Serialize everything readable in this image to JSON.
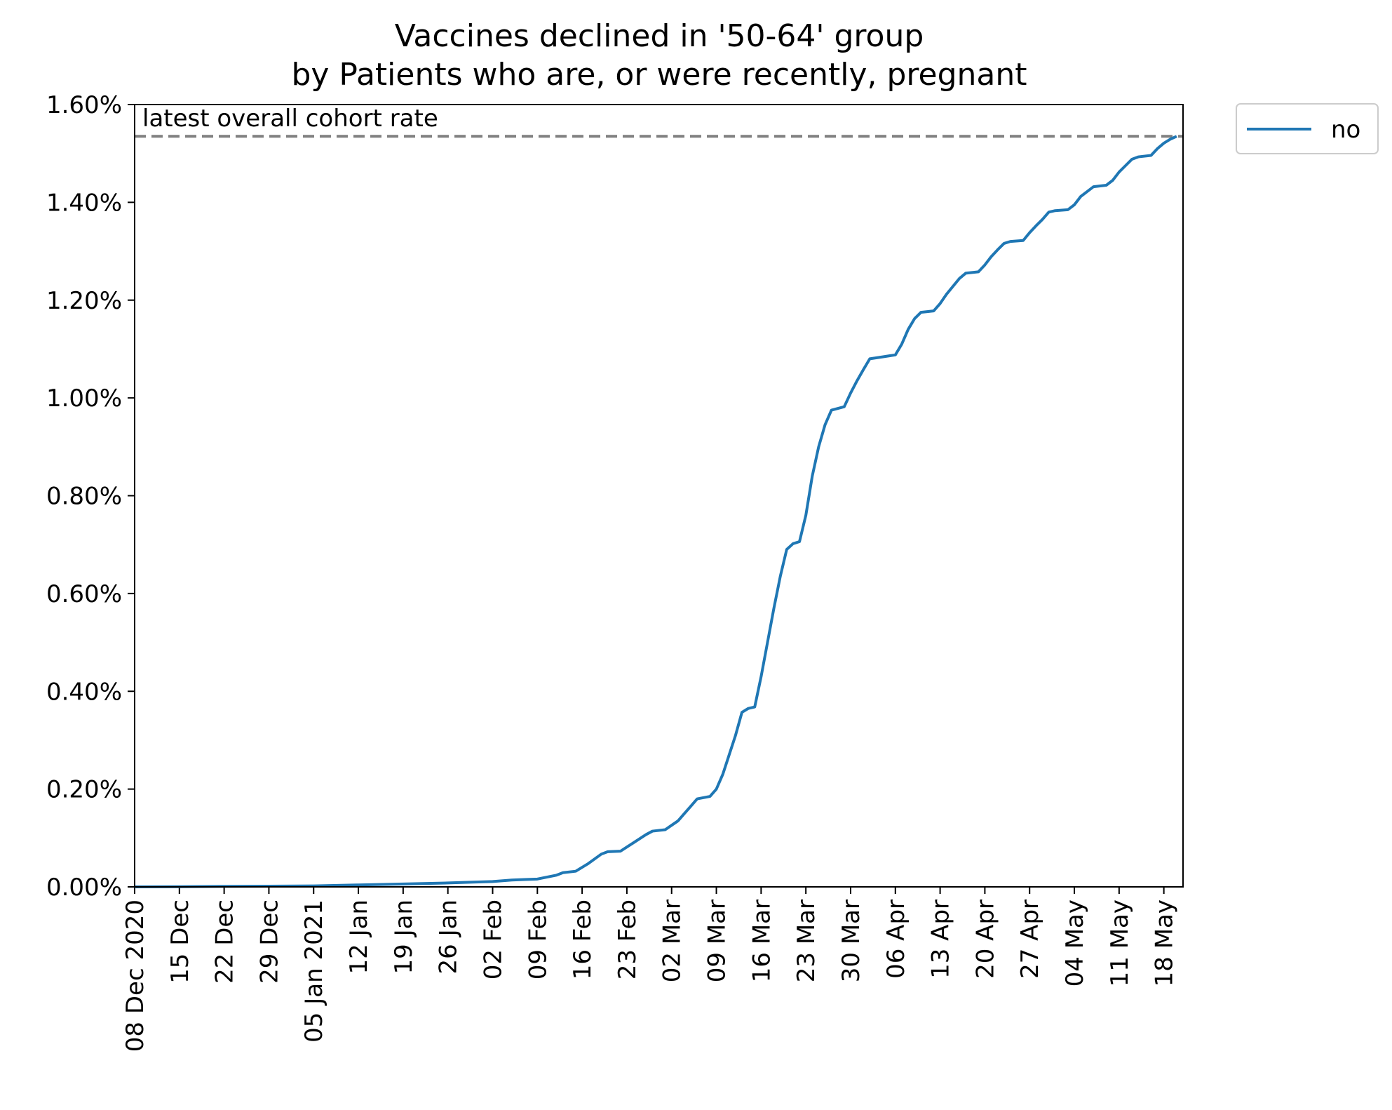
{
  "chart_data": {
    "type": "line",
    "title": "Vaccines declined in '50-64' group",
    "subtitle": "by Patients who are, or were recently, pregnant",
    "xlabel": "",
    "ylabel": "",
    "x_range": [
      "2020-12-08",
      "2021-05-21"
    ],
    "ylim": [
      0,
      1.6
    ],
    "y_unit": "%",
    "y_ticks": [
      {
        "value": 0.0,
        "label": "0.00%"
      },
      {
        "value": 0.2,
        "label": "0.20%"
      },
      {
        "value": 0.4,
        "label": "0.40%"
      },
      {
        "value": 0.6,
        "label": "0.60%"
      },
      {
        "value": 0.8,
        "label": "0.80%"
      },
      {
        "value": 1.0,
        "label": "1.00%"
      },
      {
        "value": 1.2,
        "label": "1.20%"
      },
      {
        "value": 1.4,
        "label": "1.40%"
      },
      {
        "value": 1.6,
        "label": "1.60%"
      }
    ],
    "x_ticks": [
      {
        "date": "2020-12-08",
        "label": "08 Dec 2020"
      },
      {
        "date": "2020-12-15",
        "label": "15 Dec"
      },
      {
        "date": "2020-12-22",
        "label": "22 Dec"
      },
      {
        "date": "2020-12-29",
        "label": "29 Dec"
      },
      {
        "date": "2021-01-05",
        "label": "05 Jan 2021"
      },
      {
        "date": "2021-01-12",
        "label": "12 Jan"
      },
      {
        "date": "2021-01-19",
        "label": "19 Jan"
      },
      {
        "date": "2021-01-26",
        "label": "26 Jan"
      },
      {
        "date": "2021-02-02",
        "label": "02 Feb"
      },
      {
        "date": "2021-02-09",
        "label": "09 Feb"
      },
      {
        "date": "2021-02-16",
        "label": "16 Feb"
      },
      {
        "date": "2021-02-23",
        "label": "23 Feb"
      },
      {
        "date": "2021-03-02",
        "label": "02 Mar"
      },
      {
        "date": "2021-03-09",
        "label": "09 Mar"
      },
      {
        "date": "2021-03-16",
        "label": "16 Mar"
      },
      {
        "date": "2021-03-23",
        "label": "23 Mar"
      },
      {
        "date": "2021-03-30",
        "label": "30 Mar"
      },
      {
        "date": "2021-04-06",
        "label": "06 Apr"
      },
      {
        "date": "2021-04-13",
        "label": "13 Apr"
      },
      {
        "date": "2021-04-20",
        "label": "20 Apr"
      },
      {
        "date": "2021-04-27",
        "label": "27 Apr"
      },
      {
        "date": "2021-05-04",
        "label": "04 May"
      },
      {
        "date": "2021-05-11",
        "label": "11 May"
      },
      {
        "date": "2021-05-18",
        "label": "18 May"
      }
    ],
    "grid": false,
    "legend_position": "outside-top-right",
    "reference_line": {
      "value": 1.535,
      "label": "latest overall cohort rate",
      "style": "dashed",
      "color": "#808080"
    },
    "series": [
      {
        "name": "no",
        "color": "#1f77b4",
        "points": [
          {
            "x": "2020-12-08",
            "y": 0.0
          },
          {
            "x": "2020-12-15",
            "y": 0.0003
          },
          {
            "x": "2020-12-22",
            "y": 0.001
          },
          {
            "x": "2020-12-29",
            "y": 0.0015
          },
          {
            "x": "2021-01-05",
            "y": 0.002
          },
          {
            "x": "2021-01-12",
            "y": 0.004
          },
          {
            "x": "2021-01-19",
            "y": 0.006
          },
          {
            "x": "2021-01-26",
            "y": 0.008
          },
          {
            "x": "2021-02-02",
            "y": 0.011
          },
          {
            "x": "2021-02-05",
            "y": 0.014
          },
          {
            "x": "2021-02-07",
            "y": 0.015
          },
          {
            "x": "2021-02-09",
            "y": 0.016
          },
          {
            "x": "2021-02-12",
            "y": 0.024
          },
          {
            "x": "2021-02-13",
            "y": 0.029
          },
          {
            "x": "2021-02-15",
            "y": 0.032
          },
          {
            "x": "2021-02-17",
            "y": 0.048
          },
          {
            "x": "2021-02-19",
            "y": 0.067
          },
          {
            "x": "2021-02-20",
            "y": 0.072
          },
          {
            "x": "2021-02-22",
            "y": 0.073
          },
          {
            "x": "2021-02-24",
            "y": 0.09
          },
          {
            "x": "2021-02-26",
            "y": 0.107
          },
          {
            "x": "2021-02-27",
            "y": 0.114
          },
          {
            "x": "2021-03-01",
            "y": 0.117
          },
          {
            "x": "2021-03-02",
            "y": 0.126
          },
          {
            "x": "2021-03-03",
            "y": 0.135
          },
          {
            "x": "2021-03-04",
            "y": 0.15
          },
          {
            "x": "2021-03-05",
            "y": 0.165
          },
          {
            "x": "2021-03-06",
            "y": 0.18
          },
          {
            "x": "2021-03-08",
            "y": 0.185
          },
          {
            "x": "2021-03-09",
            "y": 0.2
          },
          {
            "x": "2021-03-10",
            "y": 0.23
          },
          {
            "x": "2021-03-11",
            "y": 0.27
          },
          {
            "x": "2021-03-12",
            "y": 0.31
          },
          {
            "x": "2021-03-13",
            "y": 0.357
          },
          {
            "x": "2021-03-14",
            "y": 0.365
          },
          {
            "x": "2021-03-15",
            "y": 0.368
          },
          {
            "x": "2021-03-16",
            "y": 0.43
          },
          {
            "x": "2021-03-17",
            "y": 0.5
          },
          {
            "x": "2021-03-18",
            "y": 0.57
          },
          {
            "x": "2021-03-19",
            "y": 0.635
          },
          {
            "x": "2021-03-20",
            "y": 0.69
          },
          {
            "x": "2021-03-21",
            "y": 0.702
          },
          {
            "x": "2021-03-22",
            "y": 0.706
          },
          {
            "x": "2021-03-23",
            "y": 0.76
          },
          {
            "x": "2021-03-24",
            "y": 0.84
          },
          {
            "x": "2021-03-25",
            "y": 0.9
          },
          {
            "x": "2021-03-26",
            "y": 0.945
          },
          {
            "x": "2021-03-27",
            "y": 0.975
          },
          {
            "x": "2021-03-29",
            "y": 0.982
          },
          {
            "x": "2021-03-30",
            "y": 1.01
          },
          {
            "x": "2021-03-31",
            "y": 1.035
          },
          {
            "x": "2021-04-01",
            "y": 1.058
          },
          {
            "x": "2021-04-02",
            "y": 1.08
          },
          {
            "x": "2021-04-04",
            "y": 1.084
          },
          {
            "x": "2021-04-06",
            "y": 1.088
          },
          {
            "x": "2021-04-07",
            "y": 1.11
          },
          {
            "x": "2021-04-08",
            "y": 1.14
          },
          {
            "x": "2021-04-09",
            "y": 1.162
          },
          {
            "x": "2021-04-10",
            "y": 1.175
          },
          {
            "x": "2021-04-12",
            "y": 1.178
          },
          {
            "x": "2021-04-13",
            "y": 1.193
          },
          {
            "x": "2021-04-14",
            "y": 1.212
          },
          {
            "x": "2021-04-15",
            "y": 1.228
          },
          {
            "x": "2021-04-16",
            "y": 1.244
          },
          {
            "x": "2021-04-17",
            "y": 1.255
          },
          {
            "x": "2021-04-19",
            "y": 1.258
          },
          {
            "x": "2021-04-20",
            "y": 1.272
          },
          {
            "x": "2021-04-21",
            "y": 1.289
          },
          {
            "x": "2021-04-22",
            "y": 1.303
          },
          {
            "x": "2021-04-23",
            "y": 1.316
          },
          {
            "x": "2021-04-24",
            "y": 1.32
          },
          {
            "x": "2021-04-26",
            "y": 1.322
          },
          {
            "x": "2021-04-27",
            "y": 1.338
          },
          {
            "x": "2021-04-28",
            "y": 1.352
          },
          {
            "x": "2021-04-29",
            "y": 1.365
          },
          {
            "x": "2021-04-30",
            "y": 1.38
          },
          {
            "x": "2021-05-01",
            "y": 1.383
          },
          {
            "x": "2021-05-03",
            "y": 1.385
          },
          {
            "x": "2021-05-04",
            "y": 1.395
          },
          {
            "x": "2021-05-05",
            "y": 1.412
          },
          {
            "x": "2021-05-06",
            "y": 1.422
          },
          {
            "x": "2021-05-07",
            "y": 1.432
          },
          {
            "x": "2021-05-09",
            "y": 1.435
          },
          {
            "x": "2021-05-10",
            "y": 1.445
          },
          {
            "x": "2021-05-11",
            "y": 1.462
          },
          {
            "x": "2021-05-12",
            "y": 1.475
          },
          {
            "x": "2021-05-13",
            "y": 1.488
          },
          {
            "x": "2021-05-14",
            "y": 1.493
          },
          {
            "x": "2021-05-16",
            "y": 1.496
          },
          {
            "x": "2021-05-17",
            "y": 1.51
          },
          {
            "x": "2021-05-18",
            "y": 1.521
          },
          {
            "x": "2021-05-19",
            "y": 1.529
          },
          {
            "x": "2021-05-20",
            "y": 1.535
          }
        ]
      }
    ]
  }
}
